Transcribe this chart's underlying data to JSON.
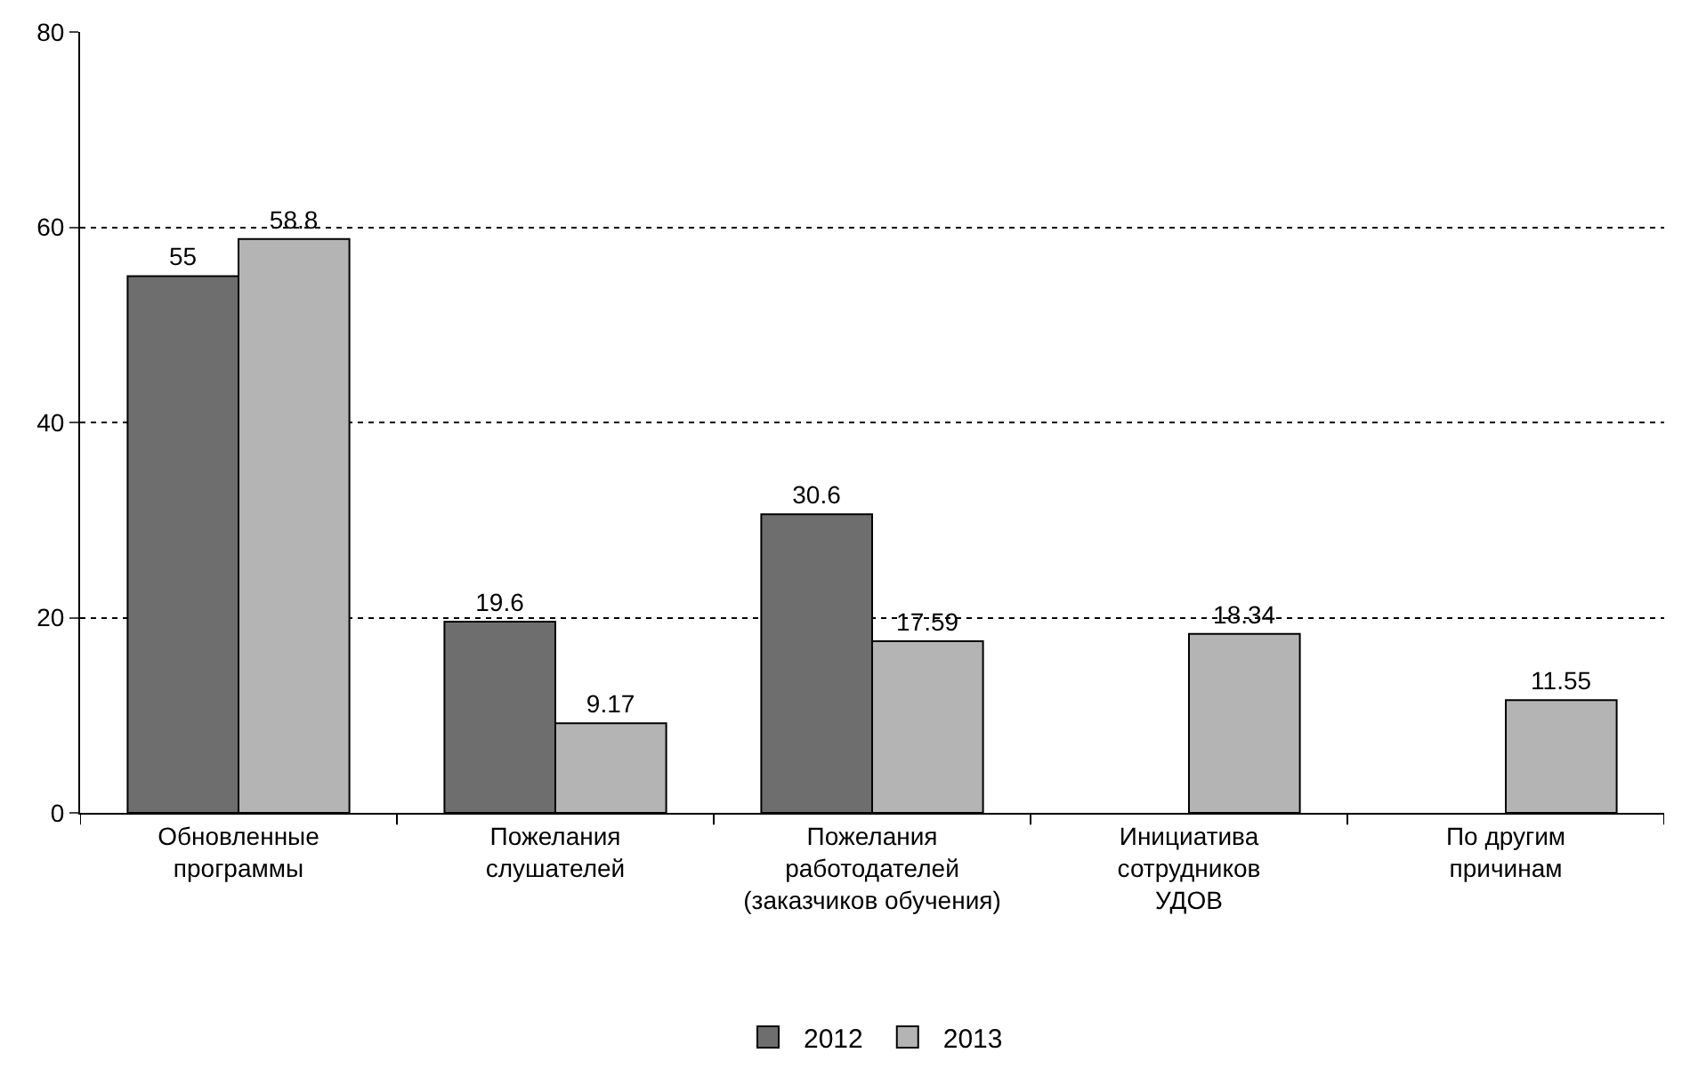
{
  "chart_data": {
    "type": "bar",
    "categories": [
      "Обновленные\nпрограммы",
      "Пожелания\nслушателей",
      "Пожелания\nработодателей\n(заказчиков обучения)",
      "Инициатива\nсотрудников\nУДОВ",
      "По другим\nпричинам"
    ],
    "series": [
      {
        "name": "2012",
        "color": "#6e6e6e",
        "values": [
          55,
          19.6,
          30.6,
          null,
          null
        ]
      },
      {
        "name": "2013",
        "color": "#b4b4b4",
        "values": [
          58.8,
          9.17,
          17.59,
          18.34,
          11.55
        ]
      }
    ],
    "ylim": [
      0,
      80
    ],
    "yticks": [
      0,
      20,
      40,
      60,
      80
    ],
    "grid": "y",
    "legend": "bottom",
    "data_labels": true
  }
}
